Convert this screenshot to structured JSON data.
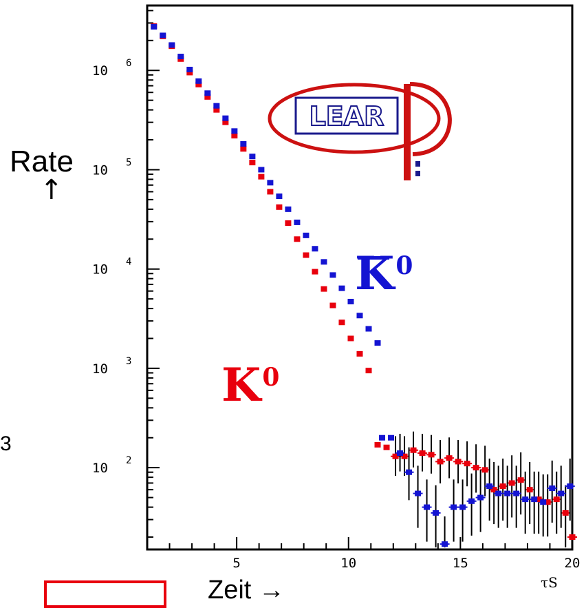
{
  "chart_data": {
    "type": "scatter",
    "xlabel": "Zeit →",
    "ylabel": "Rate",
    "ylabel_arrow": "↑",
    "x_unit": "τS",
    "xlim": [
      1,
      20
    ],
    "ylim": [
      15,
      4500000
    ],
    "y_scale": "log",
    "x_ticks": [
      "5",
      "10",
      "15",
      "20"
    ],
    "y_ticks": [
      {
        "base": "10",
        "exp": "2",
        "value": 100
      },
      {
        "base": "10",
        "exp": "3",
        "value": 1000
      },
      {
        "base": "10",
        "exp": "4",
        "value": 10000
      },
      {
        "base": "10",
        "exp": "5",
        "value": 100000
      },
      {
        "base": "10",
        "exp": "6",
        "value": 1000000
      }
    ],
    "grid": false,
    "annotations": {
      "k0": {
        "base": "K",
        "sup": "0"
      },
      "k0bar": {
        "base": "K",
        "sup": "0"
      },
      "logo": "LEAR"
    },
    "colors": {
      "k0": "#e8000d",
      "k0bar": "#1414d2",
      "logo_red": "#cc1111",
      "logo_blue": "#1a1a8c"
    },
    "series": [
      {
        "name": "K0",
        "color": "#e8000d",
        "points": [
          [
            1.3,
            2800000
          ],
          [
            1.7,
            2200000
          ],
          [
            2.1,
            1750000
          ],
          [
            2.5,
            1300000
          ],
          [
            2.9,
            950000
          ],
          [
            3.3,
            720000
          ],
          [
            3.7,
            540000
          ],
          [
            4.1,
            400000
          ],
          [
            4.5,
            300000
          ],
          [
            4.9,
            220000
          ],
          [
            5.3,
            162000
          ],
          [
            5.7,
            118000
          ],
          [
            6.1,
            85000
          ],
          [
            6.5,
            60000
          ],
          [
            6.9,
            42000
          ],
          [
            7.3,
            29000
          ],
          [
            7.7,
            20000
          ],
          [
            8.1,
            13800
          ],
          [
            8.5,
            9400
          ],
          [
            8.9,
            6300
          ],
          [
            9.3,
            4300
          ],
          [
            9.7,
            2900
          ],
          [
            10.1,
            2000
          ],
          [
            10.5,
            1400
          ],
          [
            10.9,
            950
          ],
          [
            11.3,
            650
          ],
          [
            11.7,
            450
          ],
          [
            12.1,
            320
          ],
          [
            12.5,
            230
          ],
          [
            12.9,
            180
          ],
          [
            13.3,
            150
          ],
          [
            13.7,
            130
          ],
          [
            14.1,
            118
          ],
          [
            14.5,
            112
          ],
          [
            14.9,
            110
          ],
          [
            15.3,
            108
          ],
          [
            15.7,
            106
          ],
          [
            16.1,
            100
          ],
          [
            16.5,
            94
          ],
          [
            16.9,
            88
          ],
          [
            17.3,
            80
          ],
          [
            17.7,
            72
          ],
          [
            18.1,
            65
          ],
          [
            18.5,
            58
          ],
          [
            18.9,
            52
          ],
          [
            19.3,
            46
          ],
          [
            19.7,
            40
          ],
          [
            20.0,
            35
          ]
        ],
        "errors": [
          0,
          0,
          0,
          0,
          0,
          0,
          0,
          0,
          0,
          0,
          0,
          0,
          0,
          0,
          0,
          0,
          0,
          0,
          0,
          0,
          0,
          0,
          0,
          0,
          0,
          0,
          0,
          0,
          0,
          0,
          0,
          0,
          0,
          0,
          0,
          0,
          0,
          0,
          0,
          0,
          0,
          0,
          0,
          0,
          0,
          0,
          0,
          0
        ]
      }
    ]
  }
}
